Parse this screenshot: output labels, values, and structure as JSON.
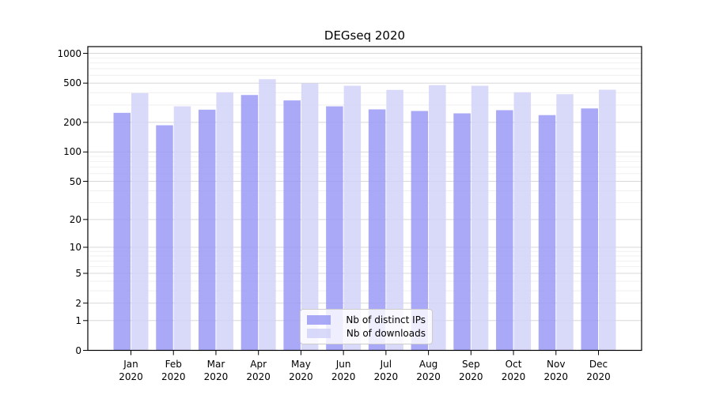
{
  "chart_data": {
    "type": "bar",
    "title": "DEGseq 2020",
    "categories": [
      "Jan",
      "Feb",
      "Mar",
      "Apr",
      "May",
      "Jun",
      "Jul",
      "Aug",
      "Sep",
      "Oct",
      "Nov",
      "Dec"
    ],
    "year_label": "2020",
    "series": [
      {
        "name": "Nb of distinct IPs",
        "color": "#9a9af6",
        "opacity": 0.85,
        "values": [
          250,
          187,
          269,
          379,
          334,
          291,
          271,
          261,
          247,
          266,
          237,
          277
        ]
      },
      {
        "name": "Nb of downloads",
        "color": "#d2d2f9",
        "opacity": 0.85,
        "values": [
          396,
          291,
          404,
          548,
          497,
          470,
          427,
          477,
          470,
          404,
          386,
          429
        ]
      }
    ],
    "yscale": "log1p",
    "y_axis_ticks": [
      0,
      1,
      2,
      5,
      10,
      20,
      50,
      100,
      200,
      500,
      1000
    ],
    "y_minor_ticks": [
      3,
      4,
      6,
      7,
      8,
      9,
      30,
      40,
      60,
      70,
      80,
      90,
      300,
      400,
      600,
      700,
      800,
      900
    ],
    "ylim": [
      0,
      1180
    ],
    "grid": true,
    "legend_position": "lower center",
    "colors": {
      "major_grid": "#d8d8d8",
      "minor_grid": "#ededed",
      "axis_frame": "#000000"
    }
  }
}
